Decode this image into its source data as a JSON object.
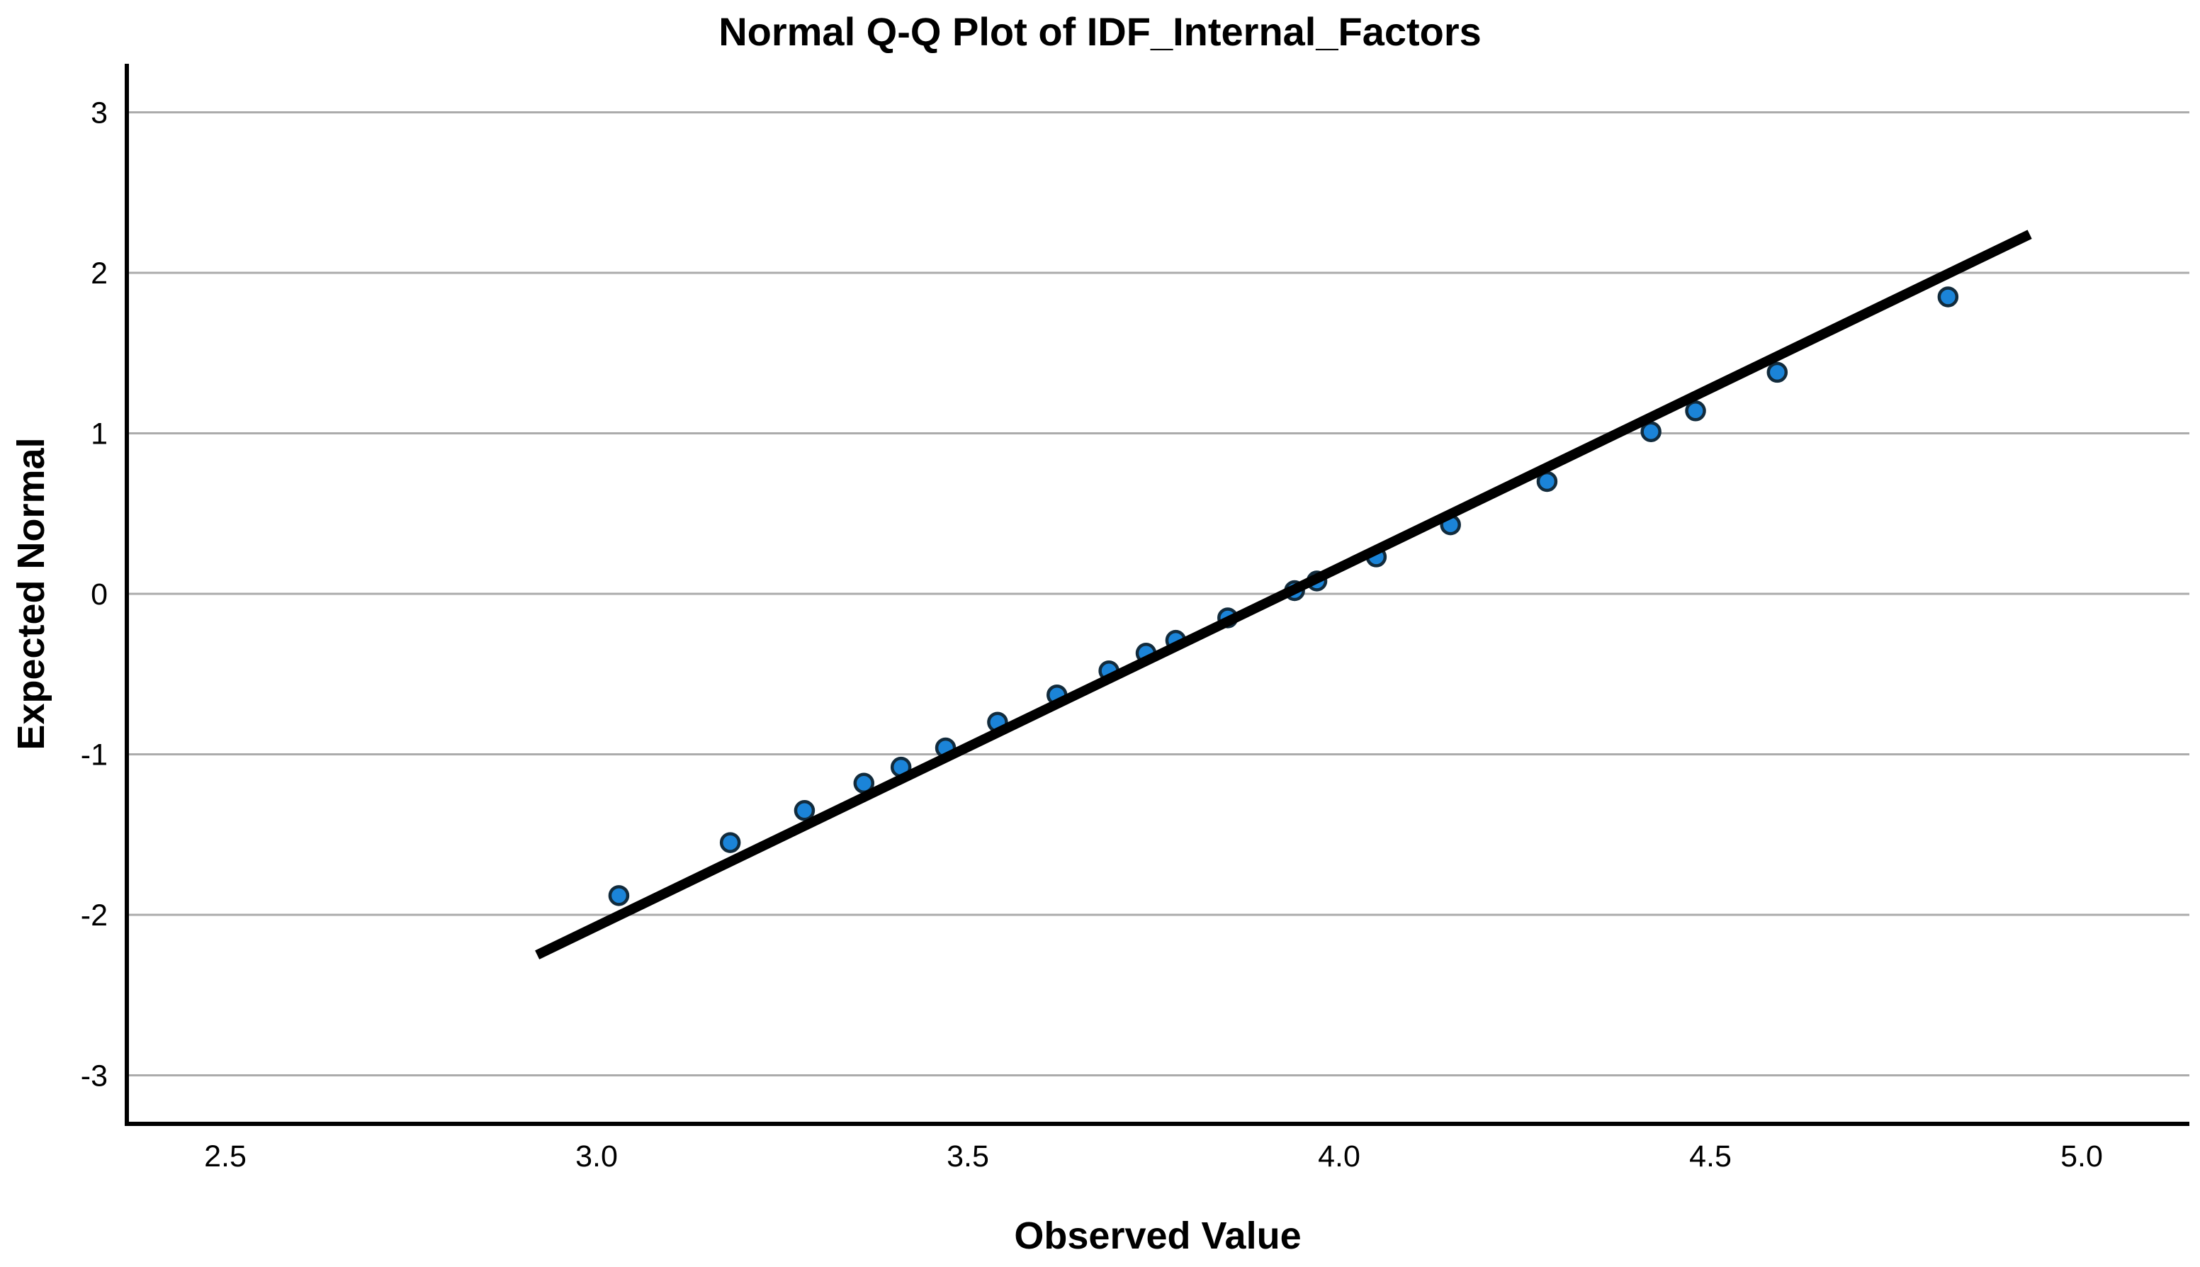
{
  "title": "Normal Q-Q Plot of IDF_Internal_Factors",
  "x_axis": {
    "label": "Observed Value",
    "tick_labels": [
      "2.5",
      "3.0",
      "3.5",
      "4.0",
      "4.5",
      "5.0"
    ],
    "tick_values": [
      2.5,
      3.0,
      3.5,
      4.0,
      4.5,
      5.0
    ]
  },
  "y_axis": {
    "label": "Expected Normal",
    "tick_labels": [
      "3",
      "2",
      "1",
      "0",
      "-1",
      "-2",
      "-3"
    ],
    "tick_values": [
      3,
      2,
      1,
      0,
      -1,
      -2,
      -3
    ]
  },
  "chart_data": {
    "type": "scatter",
    "title": "Normal Q-Q Plot of IDF_Internal_Factors",
    "xlabel": "Observed Value",
    "ylabel": "Expected Normal",
    "xlim": [
      2.37,
      5.14
    ],
    "ylim": [
      -3.3,
      3.3
    ],
    "x_ticks": [
      2.5,
      3.0,
      3.5,
      4.0,
      4.5,
      5.0
    ],
    "y_ticks": [
      3,
      2,
      1,
      0,
      -1,
      -2,
      -3
    ],
    "grid": "horizontal-only",
    "legend": "none",
    "points": [
      [
        3.03,
        -1.88
      ],
      [
        3.18,
        -1.55
      ],
      [
        3.28,
        -1.35
      ],
      [
        3.36,
        -1.18
      ],
      [
        3.41,
        -1.08
      ],
      [
        3.47,
        -0.96
      ],
      [
        3.54,
        -0.8
      ],
      [
        3.62,
        -0.63
      ],
      [
        3.69,
        -0.48
      ],
      [
        3.74,
        -0.37
      ],
      [
        3.78,
        -0.29
      ],
      [
        3.85,
        -0.15
      ],
      [
        3.94,
        0.02
      ],
      [
        3.97,
        0.08
      ],
      [
        4.05,
        0.23
      ],
      [
        4.15,
        0.43
      ],
      [
        4.28,
        0.7
      ],
      [
        4.42,
        1.01
      ],
      [
        4.48,
        1.14
      ],
      [
        4.59,
        1.38
      ],
      [
        4.82,
        1.85
      ]
    ],
    "reference_line": {
      "x1": 2.92,
      "y1": -2.25,
      "x2": 4.93,
      "y2": 2.24
    }
  },
  "colors": {
    "background": "#FFFFFF",
    "point_fill": "#1B84D8",
    "point_stroke": "#122B3C",
    "reference_line": "#000000",
    "gridline": "#ABABAB",
    "axis_line": "#000000",
    "text": "#000000"
  }
}
